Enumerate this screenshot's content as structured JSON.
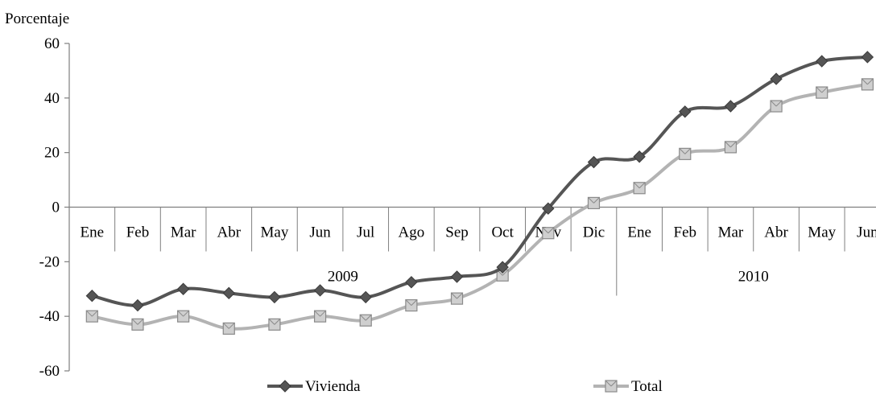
{
  "chart_data": {
    "type": "line",
    "title": "",
    "ylabel": "Porcentaje",
    "xlabel": "",
    "ylim": [
      -60,
      60
    ],
    "yticks": [
      60,
      40,
      20,
      0,
      -20,
      -40,
      -60
    ],
    "categories": [
      "Ene",
      "Feb",
      "Mar",
      "Abr",
      "May",
      "Jun",
      "Jul",
      "Ago",
      "Sep",
      "Oct",
      "Nov",
      "Dic",
      "Ene",
      "Feb",
      "Mar",
      "Abr",
      "May",
      "Jun"
    ],
    "year_groups": [
      {
        "label": "2009",
        "count": 12
      },
      {
        "label": "2010",
        "count": 6
      }
    ],
    "series": [
      {
        "name": "Vivienda",
        "color": "#555555",
        "marker": "diamond",
        "values": [
          -32.5,
          -36,
          -30,
          -31.5,
          -33,
          -30.5,
          -33,
          -27.5,
          -25.5,
          -22,
          -0.5,
          16.5,
          18.5,
          35,
          37,
          47,
          53.5,
          55
        ]
      },
      {
        "name": "Total",
        "color": "#b3b3b3",
        "marker": "square",
        "values": [
          -40,
          -43,
          -40,
          -44.5,
          -43,
          -40,
          -41.5,
          -36,
          -33.5,
          -25,
          -9.5,
          1.5,
          7,
          19.5,
          22,
          37,
          42,
          45
        ]
      }
    ],
    "grid": false,
    "legend_position": "bottom"
  }
}
